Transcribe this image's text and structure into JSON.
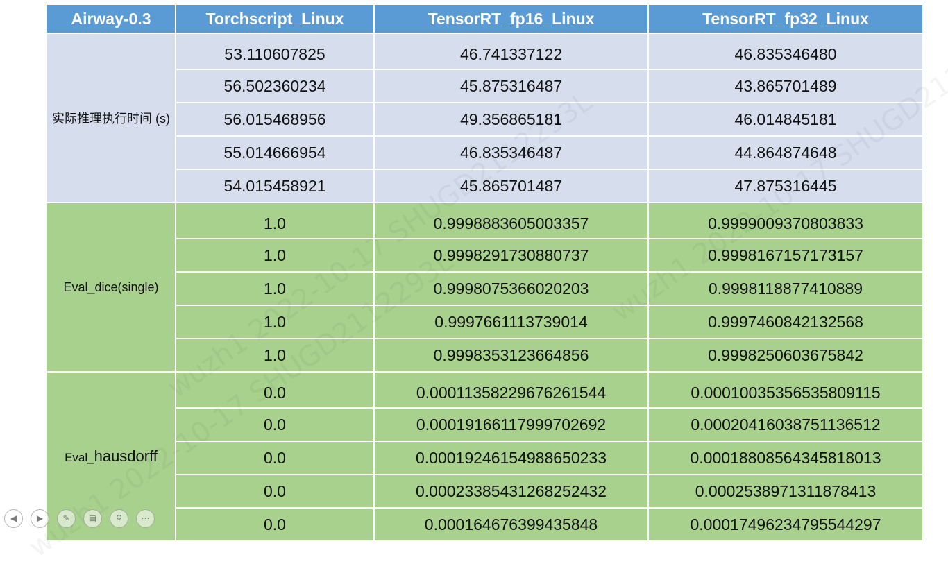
{
  "header": {
    "col0": "Airway-0.3",
    "col1": "Torchscript_Linux",
    "col2": "TensorRT_fp16_Linux",
    "col3": "TensorRT_fp32_Linux"
  },
  "groups": [
    {
      "label": "实际推理执行时间 (s)",
      "rows": [
        [
          "53.110607825",
          "46.741337122",
          "46.835346480"
        ],
        [
          "56.502360234",
          "45.875316487",
          "43.865701489"
        ],
        [
          "56.015468956",
          "49.356865181",
          "46.014845181"
        ],
        [
          "55.014666954",
          "46.835346487",
          "44.864874648"
        ],
        [
          "54.015458921",
          "45.865701487",
          "47.875316445"
        ]
      ]
    },
    {
      "label": "Eval_dice(single)",
      "rows": [
        [
          "1.0",
          "0.9998883605003357",
          "0.9999009370803833"
        ],
        [
          "1.0",
          "0.9998291730880737",
          "0.9998167157173157"
        ],
        [
          "1.0",
          "0.9998075366020203",
          "0.9998118877410889"
        ],
        [
          "1.0",
          "0.9997661113739014",
          "0.9997460842132568"
        ],
        [
          "1.0",
          "0.9998353123664856",
          "0.9998250603675842"
        ]
      ]
    },
    {
      "label_small": "Eval_",
      "label_big": "hausdorff",
      "rows": [
        [
          "0.0",
          "0.00011358229676261544",
          "0.00010035356535809115"
        ],
        [
          "0.0",
          "0.00019166117999702692",
          "0.00020416038751136512"
        ],
        [
          "0.0",
          "0.00019246154988650233",
          "0.00018808564345818013"
        ],
        [
          "0.0",
          "0.00023385431268252432",
          "0.0002538971311878413"
        ],
        [
          "0.0",
          "0.000164676399435848",
          "0.00017496234795544297"
        ]
      ]
    }
  ],
  "watermark": "wuzh1  2022-10-17  SHUGD2112293L",
  "nav": {
    "prev": "◀",
    "next": "▶",
    "pen": "✎",
    "slides": "▤",
    "zoom": "⚲",
    "more": "⋯"
  }
}
